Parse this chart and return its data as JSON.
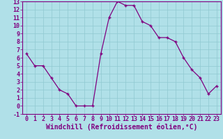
{
  "x": [
    0,
    1,
    2,
    3,
    4,
    5,
    6,
    7,
    8,
    9,
    10,
    11,
    12,
    13,
    14,
    15,
    16,
    17,
    18,
    19,
    20,
    21,
    22,
    23
  ],
  "y": [
    6.5,
    5.0,
    5.0,
    3.5,
    2.0,
    1.5,
    0.0,
    0.0,
    0.0,
    6.5,
    11.0,
    13.0,
    12.5,
    12.5,
    10.5,
    10.0,
    8.5,
    8.5,
    8.0,
    6.0,
    4.5,
    3.5,
    1.5,
    2.5
  ],
  "line_color": "#800080",
  "marker": "+",
  "bg_color": "#b0e0e8",
  "grid_color": "#90c8d0",
  "xlabel": "Windchill (Refroidissement éolien,°C)",
  "xlabel_color": "#800080",
  "tick_color": "#800080",
  "spine_color": "#800080",
  "ylim": [
    -1,
    13
  ],
  "xlim": [
    -0.5,
    23.5
  ],
  "yticks": [
    -1,
    0,
    1,
    2,
    3,
    4,
    5,
    6,
    7,
    8,
    9,
    10,
    11,
    12,
    13
  ],
  "xticks": [
    0,
    1,
    2,
    3,
    4,
    5,
    6,
    7,
    8,
    9,
    10,
    11,
    12,
    13,
    14,
    15,
    16,
    17,
    18,
    19,
    20,
    21,
    22,
    23
  ],
  "label_fontsize": 6.5,
  "tick_fontsize": 6.0,
  "xlabel_fontsize": 7.0
}
